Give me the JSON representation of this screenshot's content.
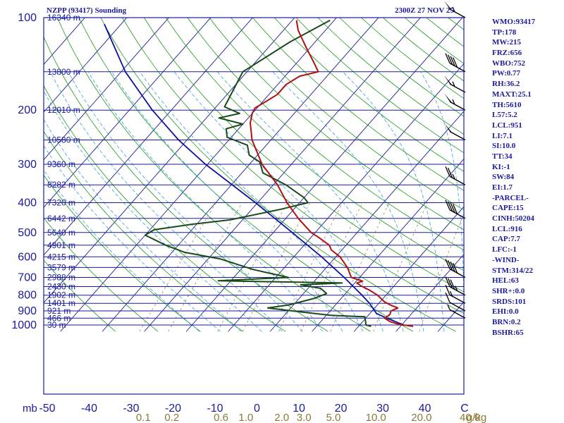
{
  "header": {
    "station_title": "NZPP (93417) Sounding",
    "valid_time": "2300Z 27 NOV 25"
  },
  "indices": [
    "WMO:93417",
    "TP:178",
    "MW:215",
    "FRZ:656",
    "WBO:752",
    "PW:0.77",
    "RH:36.2",
    "MAXT:25.1",
    "TH:5610",
    "L57:5.2",
    "LCL:951",
    "LI:7.1",
    "SI:10.0",
    "TT:34",
    "KI:-1",
    "SW:84",
    "EI:1.7",
    "-PARCEL-",
    "CAPE:15",
    "CINH:50204",
    "LCL:916",
    "CAP:7.7",
    "LFC:-1",
    "-WIND-",
    "STM:314/22",
    "HEL:63",
    "SHR+:0.0",
    "SRDS:101",
    "EHI:0.0",
    "BRN:0.2",
    "BSHR:65"
  ],
  "colors": {
    "frame": "#1a1a9a",
    "isobar": "#1a1a9a",
    "isotherm": "#1a1a9a",
    "dry_adiabat": "#1a9a1a",
    "moist_adiabat": "#3aa0d8",
    "mixing_ratio": "#a08a60",
    "temperature": "#b01010",
    "dewpoint": "#1a4a1a",
    "parcel": "#1010a0",
    "wind": "#000000",
    "mixing_label": "#8a7a3a"
  },
  "chart_data": {
    "type": "line",
    "subtype": "skew-t log-p",
    "pressure_ticks": [
      100,
      200,
      300,
      400,
      500,
      600,
      700,
      800,
      900,
      1000
    ],
    "isobar_pressures": [
      150,
      200,
      250,
      300,
      350,
      400,
      450,
      500,
      550,
      600,
      650,
      700,
      750,
      800,
      850,
      900,
      950,
      1000
    ],
    "temperature_ticks": [
      -50,
      -40,
      -30,
      -20,
      -10,
      0,
      10,
      20,
      30,
      40
    ],
    "temperature_unit_label": "C",
    "pressure_unit_label": "mb",
    "height_labels": [
      {
        "p": 100,
        "text": "16340 m"
      },
      {
        "p": 150,
        "text": "13800 m"
      },
      {
        "p": 200,
        "text": "12010 m"
      },
      {
        "p": 250,
        "text": "10580 m"
      },
      {
        "p": 300,
        "text": "9360 m"
      },
      {
        "p": 350,
        "text": "8282 m"
      },
      {
        "p": 400,
        "text": "7320 m"
      },
      {
        "p": 450,
        "text": "6442 m"
      },
      {
        "p": 500,
        "text": "5640 m"
      },
      {
        "p": 550,
        "text": "4901 m"
      },
      {
        "p": 600,
        "text": "4215 m"
      },
      {
        "p": 650,
        "text": "3579 m"
      },
      {
        "p": 700,
        "text": "2988 m"
      },
      {
        "p": 750,
        "text": "2430 m"
      },
      {
        "p": 800,
        "text": "1902 m"
      },
      {
        "p": 850,
        "text": "1401 m"
      },
      {
        "p": 900,
        "text": "921 m"
      },
      {
        "p": 950,
        "text": "466 m"
      },
      {
        "p": 1000,
        "text": "30 m"
      }
    ],
    "mixing_ratio_ticks": [
      {
        "w": 0.1,
        "label": "0.1"
      },
      {
        "w": 0.2,
        "label": "0.2"
      },
      {
        "w": 0.6,
        "label": "0.6"
      },
      {
        "w": 1.0,
        "label": "1.0"
      },
      {
        "w": 2.0,
        "label": "2.0"
      },
      {
        "w": 3.0,
        "label": "3.0"
      },
      {
        "w": 5.0,
        "label": "5.0"
      },
      {
        "w": 10.0,
        "label": "10.0"
      },
      {
        "w": 20.0,
        "label": "20.0"
      },
      {
        "w": 40.0,
        "label": "40.0"
      }
    ],
    "mixing_ratio_unit": "g/kg",
    "temperature": [
      {
        "p": 1010,
        "t": 23.0
      },
      {
        "p": 1000,
        "t": 20.5
      },
      {
        "p": 990,
        "t": 18.5
      },
      {
        "p": 975,
        "t": 16.5
      },
      {
        "p": 950,
        "t": 14.5
      },
      {
        "p": 925,
        "t": 15.0
      },
      {
        "p": 900,
        "t": 14.5
      },
      {
        "p": 880,
        "t": 15.5
      },
      {
        "p": 860,
        "t": 13.0
      },
      {
        "p": 840,
        "t": 11.0
      },
      {
        "p": 800,
        "t": 8.0
      },
      {
        "p": 770,
        "t": 5.0
      },
      {
        "p": 745,
        "t": 2.0
      },
      {
        "p": 730,
        "t": 0.5
      },
      {
        "p": 720,
        "t": 1.5
      },
      {
        "p": 700,
        "t": -2.0
      },
      {
        "p": 650,
        "t": -5.0
      },
      {
        "p": 600,
        "t": -9.0
      },
      {
        "p": 570,
        "t": -12.5
      },
      {
        "p": 550,
        "t": -14.0
      },
      {
        "p": 520,
        "t": -18.0
      },
      {
        "p": 500,
        "t": -21.0
      },
      {
        "p": 450,
        "t": -27.0
      },
      {
        "p": 400,
        "t": -33.0
      },
      {
        "p": 350,
        "t": -39.0
      },
      {
        "p": 300,
        "t": -47.0
      },
      {
        "p": 250,
        "t": -54.5
      },
      {
        "p": 220,
        "t": -58.5
      },
      {
        "p": 205,
        "t": -60.0
      },
      {
        "p": 197,
        "t": -60.5
      },
      {
        "p": 178,
        "t": -58.0
      },
      {
        "p": 165,
        "t": -58.0
      },
      {
        "p": 155,
        "t": -56.5
      },
      {
        "p": 150,
        "t": -53.0
      },
      {
        "p": 140,
        "t": -56.0
      },
      {
        "p": 125,
        "t": -61.0
      },
      {
        "p": 110,
        "t": -66.5
      },
      {
        "p": 102,
        "t": -69.0
      }
    ],
    "dewpoint": [
      {
        "p": 1010,
        "t": 13.0
      },
      {
        "p": 1000,
        "t": 11.5
      },
      {
        "p": 940,
        "t": 9.5
      },
      {
        "p": 930,
        "t": 1.0
      },
      {
        "p": 900,
        "t": -9.0
      },
      {
        "p": 880,
        "t": -15.5
      },
      {
        "p": 860,
        "t": -11.0
      },
      {
        "p": 820,
        "t": -6.5
      },
      {
        "p": 790,
        "t": -4.5
      },
      {
        "p": 760,
        "t": -7.0
      },
      {
        "p": 740,
        "t": -12.5
      },
      {
        "p": 730,
        "t": -3.0
      },
      {
        "p": 718,
        "t": -33.0
      },
      {
        "p": 700,
        "t": -17.0
      },
      {
        "p": 660,
        "t": -27.0
      },
      {
        "p": 610,
        "t": -37.0
      },
      {
        "p": 580,
        "t": -47.0
      },
      {
        "p": 550,
        "t": -53.0
      },
      {
        "p": 510,
        "t": -60.0
      },
      {
        "p": 490,
        "t": -59.0
      },
      {
        "p": 470,
        "t": -51.0
      },
      {
        "p": 455,
        "t": -43.0
      },
      {
        "p": 420,
        "t": -33.0
      },
      {
        "p": 400,
        "t": -28.0
      },
      {
        "p": 385,
        "t": -30.0
      },
      {
        "p": 350,
        "t": -37.0
      },
      {
        "p": 320,
        "t": -45.0
      },
      {
        "p": 295,
        "t": -48.0
      },
      {
        "p": 280,
        "t": -52.0
      },
      {
        "p": 260,
        "t": -54.5
      },
      {
        "p": 245,
        "t": -61.0
      },
      {
        "p": 230,
        "t": -63.0
      },
      {
        "p": 222,
        "t": -60.0
      },
      {
        "p": 212,
        "t": -67.0
      },
      {
        "p": 205,
        "t": -63.0
      },
      {
        "p": 195,
        "t": -68.0
      },
      {
        "p": 150,
        "t": -71.0
      },
      {
        "p": 120,
        "t": -66.0
      },
      {
        "p": 102,
        "t": -61.0
      }
    ],
    "parcel": [
      {
        "p": 1000,
        "t": 20.5
      },
      {
        "p": 950,
        "t": 15.0
      },
      {
        "p": 916,
        "t": 11.5
      },
      {
        "p": 850,
        "t": 7.8
      },
      {
        "p": 800,
        "t": 4.3
      },
      {
        "p": 700,
        "t": -3.7
      },
      {
        "p": 600,
        "t": -13.4
      },
      {
        "p": 500,
        "t": -25.5
      },
      {
        "p": 400,
        "t": -40.5
      },
      {
        "p": 300,
        "t": -60.5
      },
      {
        "p": 250,
        "t": -72.0
      },
      {
        "p": 200,
        "t": -84.5
      },
      {
        "p": 150,
        "t": -99.0
      },
      {
        "p": 105,
        "t": -114.0
      }
    ],
    "wind_barbs_kt": [
      {
        "p": 100,
        "speed": 55
      },
      {
        "p": 150,
        "speed": 40
      },
      {
        "p": 175,
        "speed": 55
      },
      {
        "p": 200,
        "speed": 55
      },
      {
        "p": 250,
        "speed": 50
      },
      {
        "p": 350,
        "speed": 25
      },
      {
        "p": 450,
        "speed": 40
      },
      {
        "p": 700,
        "speed": 40
      },
      {
        "p": 800,
        "speed": 35
      },
      {
        "p": 850,
        "speed": 15
      },
      {
        "p": 900,
        "speed": 10
      },
      {
        "p": 950,
        "speed": 5
      }
    ]
  }
}
